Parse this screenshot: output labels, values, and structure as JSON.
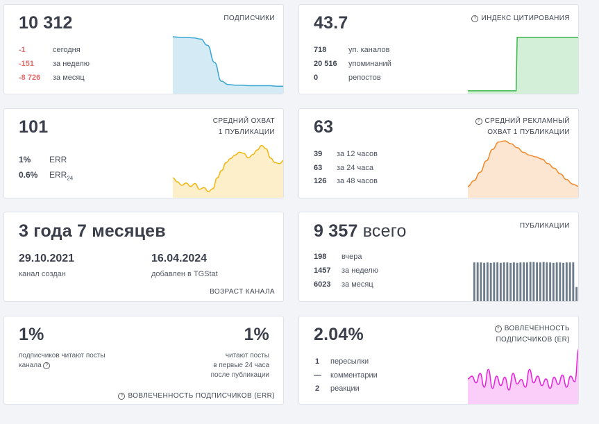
{
  "subscribers": {
    "value": "10 312",
    "label": "ПОДПИСЧИКИ",
    "rows": [
      {
        "value": "-1",
        "text": "сегодня"
      },
      {
        "value": "-151",
        "text": "за неделю"
      },
      {
        "value": "-8 726",
        "text": "за месяц"
      }
    ],
    "color": "#3aa6d2"
  },
  "citation": {
    "value": "43.7",
    "label": "ИНДЕКС ЦИТИРОВАНИЯ",
    "rows": [
      {
        "value": "718",
        "text": "уп. каналов"
      },
      {
        "value": "20 516",
        "text": "упоминаний"
      },
      {
        "value": "0",
        "text": "репостов"
      }
    ],
    "color": "#3ab54a"
  },
  "avg_reach": {
    "value": "101",
    "label_line1": "СРЕДНИЙ ОХВАТ",
    "label_line2": "1 ПУБЛИКАЦИИ",
    "rows": [
      {
        "value": "1%",
        "text": "ERR"
      },
      {
        "value": "0.6%",
        "text": "ERR",
        "sub": "24"
      }
    ],
    "color": "#f3b40c"
  },
  "ad_reach": {
    "value": "63",
    "label_line1": "СРЕДНИЙ РЕКЛАМНЫЙ",
    "label_line2": "ОХВАТ 1 ПУБЛИКАЦИИ",
    "rows": [
      {
        "value": "39",
        "text": "за 12 часов"
      },
      {
        "value": "63",
        "text": "за 24 часа"
      },
      {
        "value": "126",
        "text": "за 48 часов"
      }
    ],
    "color": "#f28a2c"
  },
  "age": {
    "value": "3 года 7 месяцев",
    "created_date": "29.10.2021",
    "created_label": "канал создан",
    "added_date": "16.04.2024",
    "added_label": "добавлен в TGStat",
    "label": "ВОЗРАСТ КАНАЛА"
  },
  "publications": {
    "value": "9 357",
    "unit": "всего",
    "label": "ПУБЛИКАЦИИ",
    "rows": [
      {
        "value": "198",
        "text": "вчера"
      },
      {
        "value": "1457",
        "text": "за неделю"
      },
      {
        "value": "6023",
        "text": "за месяц"
      }
    ],
    "color": "#6f7c8c"
  },
  "err": {
    "left_value": "1%",
    "left_text_line1": "подписчиков читают посты",
    "left_text_line2": "канала",
    "right_value": "1%",
    "right_text_line1": "читают посты",
    "right_text_line2": "в первые 24 часа",
    "right_text_line3": "после публикации",
    "label": "ВОВЛЕЧЕННОСТЬ ПОДПИСЧИКОВ (ERR)"
  },
  "er": {
    "value": "2.04%",
    "label_line1": "ВОВЛЕЧЕННОСТЬ",
    "label_line2": "ПОДПИСЧИКОВ (ER)",
    "rows": [
      {
        "value": "1",
        "text": "пересылки"
      },
      {
        "value": "—",
        "text": "комментарии"
      },
      {
        "value": "2",
        "text": "реакции"
      }
    ],
    "color": "#e81fe0"
  },
  "chart_data": [
    {
      "type": "area",
      "name": "subscribers",
      "values": [
        1,
        0.99,
        0.99,
        0.98,
        0.96,
        0.85,
        0.55,
        0.22,
        0.16,
        0.15,
        0.15,
        0.14,
        0.14,
        0.14,
        0.14,
        0.13,
        0.13
      ]
    },
    {
      "type": "area",
      "name": "citation",
      "values": [
        0.05,
        0.05,
        0.05,
        0.05,
        0.05,
        0.05,
        0.05,
        0.05,
        0.99,
        0.99,
        0.99,
        0.99,
        0.99,
        0.99,
        0.99,
        0.99,
        0.99,
        0.99,
        0.99
      ]
    },
    {
      "type": "area",
      "name": "avg_reach",
      "values": [
        0.35,
        0.28,
        0.22,
        0.26,
        0.2,
        0.25,
        0.15,
        0.18,
        0.11,
        0.16,
        0.35,
        0.48,
        0.62,
        0.69,
        0.75,
        0.8,
        0.78,
        0.7,
        0.76,
        0.84,
        0.92,
        0.86,
        0.7,
        0.62,
        0.6,
        0.66
      ]
    },
    {
      "type": "area",
      "name": "ad_reach",
      "values": [
        0.2,
        0.3,
        0.45,
        0.65,
        0.85,
        0.98,
        1,
        0.95,
        0.88,
        0.8,
        0.75,
        0.72,
        0.68,
        0.6,
        0.52,
        0.42,
        0.32,
        0.24,
        0.2
      ]
    },
    {
      "type": "bar",
      "name": "publications",
      "values": [
        0.93,
        0.93,
        0.93,
        0.92,
        0.93,
        0.92,
        0.93,
        0.93,
        0.92,
        0.93,
        0.93,
        0.92,
        0.93,
        0.92,
        0.93,
        0.93,
        0.93,
        0.94,
        0.94,
        0.93,
        0.93,
        0.94,
        0.93,
        0.93,
        0.92,
        0.93,
        0.93,
        0.92,
        0.93,
        0.93,
        0.93,
        0.34
      ]
    },
    {
      "type": "area",
      "name": "er",
      "values": [
        0.45,
        0.5,
        0.38,
        0.55,
        0.3,
        0.62,
        0.28,
        0.5,
        0.33,
        0.48,
        0.25,
        0.55,
        0.36,
        0.44,
        0.3,
        0.62,
        0.38,
        0.5,
        0.33,
        0.45,
        0.28,
        0.48,
        0.35,
        0.52,
        0.3,
        0.5,
        0.4,
        1
      ]
    }
  ]
}
